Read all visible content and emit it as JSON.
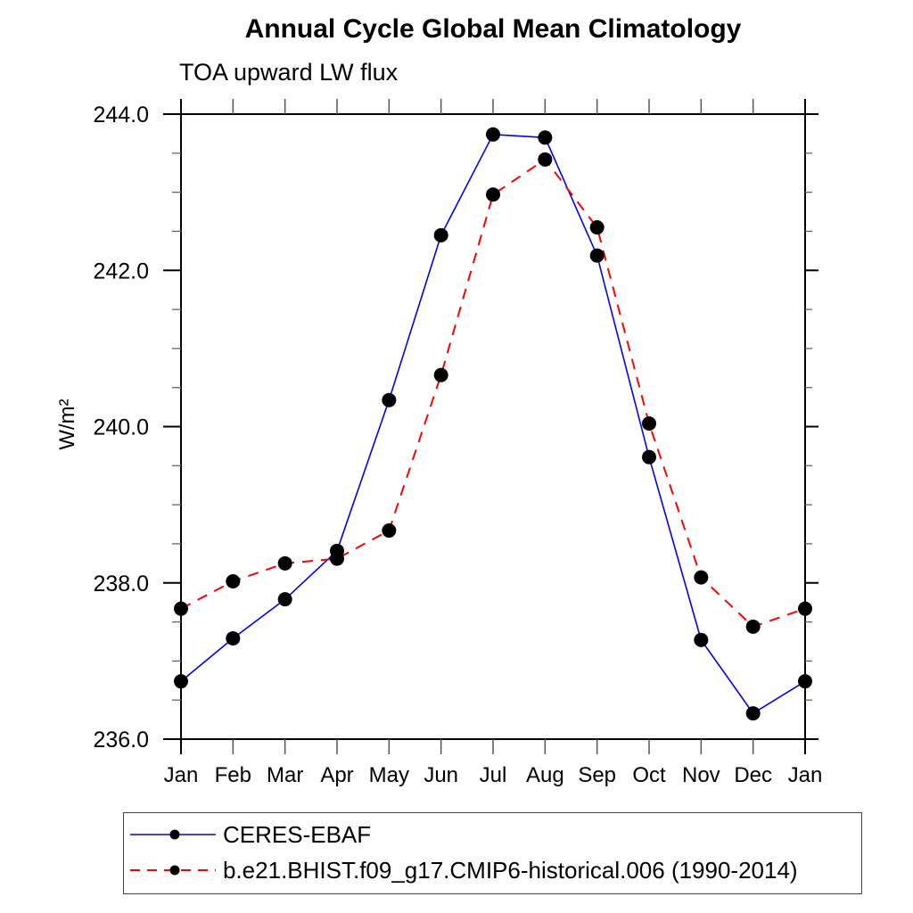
{
  "title": "Annual Cycle Global Mean Climatology",
  "subtitle": "TOA upward LW flux",
  "ylabel": "W/m²",
  "colors": {
    "obs_line": "#0000ff",
    "model_line": "#ff0000",
    "marker": "#000000",
    "axis": "#000000"
  },
  "chart_data": {
    "type": "line",
    "title": "Annual Cycle Global Mean Climatology",
    "subtitle": "TOA upward LW flux",
    "xlabel": "",
    "ylabel": "W/m²",
    "categories": [
      "Jan",
      "Feb",
      "Mar",
      "Apr",
      "May",
      "Jun",
      "Jul",
      "Aug",
      "Sep",
      "Oct",
      "Nov",
      "Dec",
      "Jan"
    ],
    "series": [
      {
        "name": "CERES-EBAF",
        "color": "#0000ff",
        "line_style": "solid",
        "marker": "circle",
        "marker_color": "#000000",
        "values": [
          236.74,
          237.29,
          237.79,
          238.41,
          240.34,
          242.45,
          243.74,
          243.7,
          242.19,
          239.61,
          237.27,
          236.33,
          236.74
        ]
      },
      {
        "name": "b.e21.BHIST.f09_g17.CMIP6-historical.006 (1990-2014)",
        "color": "#ff0000",
        "line_style": "dashed",
        "marker": "circle",
        "marker_color": "#000000",
        "values": [
          237.67,
          238.02,
          238.25,
          238.31,
          238.67,
          240.66,
          242.97,
          243.42,
          242.55,
          240.04,
          238.07,
          237.44,
          237.67
        ]
      }
    ],
    "ylim": [
      236.0,
      244.0
    ],
    "y_major_ticks": [
      236.0,
      238.0,
      240.0,
      242.0,
      244.0
    ],
    "y_tick_labels": [
      "236.0",
      "238.0",
      "240.0",
      "242.0",
      "244.0"
    ],
    "y_minor_step": 0.5,
    "grid": false,
    "legend_position": "bottom"
  }
}
